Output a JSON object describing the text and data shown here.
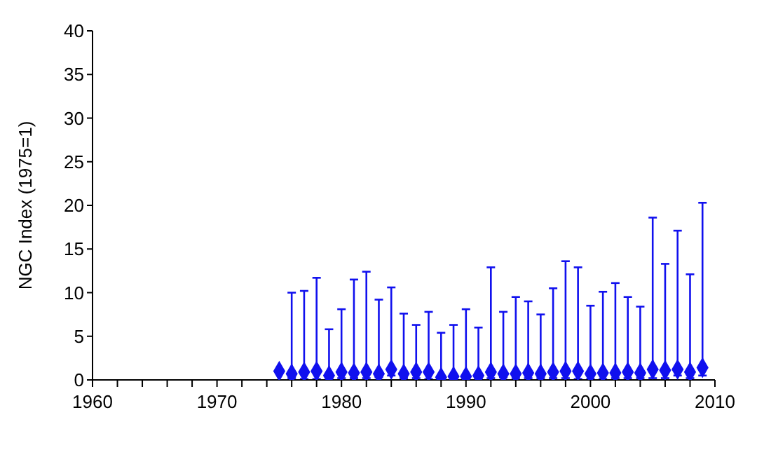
{
  "chart_data": {
    "type": "scatter",
    "ylabel": "NGC Index (1975=1)",
    "x": [
      1975,
      1976,
      1977,
      1978,
      1979,
      1980,
      1981,
      1982,
      1983,
      1984,
      1985,
      1986,
      1987,
      1988,
      1989,
      1990,
      1991,
      1992,
      1993,
      1994,
      1995,
      1996,
      1997,
      1998,
      1999,
      2000,
      2001,
      2002,
      2003,
      2004,
      2005,
      2006,
      2007,
      2008,
      2009
    ],
    "series": [
      {
        "color": "#1010ee",
        "values": [
          1.0,
          0.7,
          0.9,
          1.0,
          0.5,
          0.9,
          0.8,
          0.9,
          0.7,
          1.2,
          0.7,
          0.9,
          0.9,
          0.3,
          0.4,
          0.4,
          0.5,
          0.9,
          0.7,
          0.7,
          0.8,
          0.7,
          0.9,
          1.0,
          1.0,
          0.7,
          0.8,
          0.8,
          0.9,
          0.8,
          1.2,
          1.1,
          1.2,
          0.9,
          1.4
        ],
        "errors": [
          null,
          [
            0.2,
            10.0
          ],
          [
            0.1,
            10.2
          ],
          [
            0.1,
            11.7
          ],
          [
            0.2,
            5.8
          ],
          [
            0.2,
            8.1
          ],
          [
            0.2,
            11.5
          ],
          [
            0.2,
            12.4
          ],
          [
            0.3,
            9.2
          ],
          [
            0.5,
            10.6
          ],
          [
            0.2,
            7.6
          ],
          [
            0.2,
            6.3
          ],
          [
            0.1,
            7.8
          ],
          [
            0.1,
            5.4
          ],
          [
            0.1,
            6.3
          ],
          [
            0.1,
            8.1
          ],
          [
            0.1,
            6.0
          ],
          [
            0.2,
            12.9
          ],
          [
            0.3,
            7.8
          ],
          [
            0.2,
            9.5
          ],
          [
            0.2,
            9.0
          ],
          [
            0.2,
            7.5
          ],
          [
            0.2,
            10.5
          ],
          [
            0.2,
            13.6
          ],
          [
            0.1,
            12.9
          ],
          [
            0.1,
            8.5
          ],
          [
            0.1,
            10.1
          ],
          [
            0.2,
            11.1
          ],
          [
            0.2,
            9.5
          ],
          [
            0.2,
            8.4
          ],
          [
            0.2,
            18.6
          ],
          [
            0.2,
            13.3
          ],
          [
            0.5,
            17.1
          ],
          [
            0.2,
            12.1
          ],
          [
            0.5,
            20.3
          ]
        ]
      }
    ],
    "marker": "diamond",
    "grid": false,
    "legend": false,
    "xlim": [
      1960,
      2010
    ],
    "xticks": [
      1960,
      {
        "value": 1962,
        "label": null
      },
      {
        "value": 1964,
        "label": null
      },
      {
        "value": 1966,
        "label": null
      },
      {
        "value": 1968,
        "label": null
      },
      1970,
      {
        "value": 1972,
        "label": null
      },
      {
        "value": 1974,
        "label": null
      },
      {
        "value": 1976,
        "label": null
      },
      {
        "value": 1978,
        "label": null
      },
      1980,
      {
        "value": 1982,
        "label": null
      },
      {
        "value": 1984,
        "label": null
      },
      {
        "value": 1986,
        "label": null
      },
      {
        "value": 1988,
        "label": null
      },
      1990,
      {
        "value": 1992,
        "label": null
      },
      {
        "value": 1994,
        "label": null
      },
      {
        "value": 1996,
        "label": null
      },
      {
        "value": 1998,
        "label": null
      },
      2000,
      {
        "value": 2002,
        "label": null
      },
      {
        "value": 2004,
        "label": null
      },
      {
        "value": 2006,
        "label": null
      },
      {
        "value": 2008,
        "label": null
      },
      2010
    ],
    "ylim": [
      0,
      40
    ],
    "yticks": [
      0,
      5,
      10,
      15,
      20,
      25,
      30,
      35,
      40
    ]
  }
}
